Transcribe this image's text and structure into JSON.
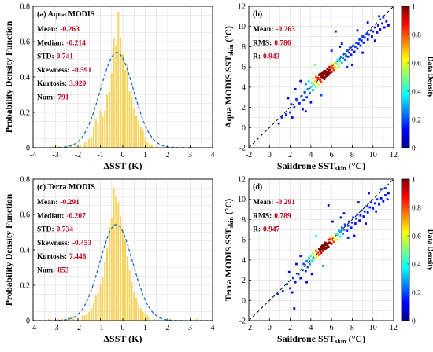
{
  "chart_data": [
    {
      "id": "a",
      "type": "bar",
      "panel_label": "(a) Aqua MODIS",
      "xlabel": "ΔSST (K)",
      "ylabel": "Probability Density Function",
      "xlim": [
        -4,
        4
      ],
      "ylim": [
        0,
        0.8
      ],
      "xticks": [
        "-4",
        "-3",
        "-2",
        "-1",
        "0",
        "1",
        "2",
        "3",
        "4"
      ],
      "yticks": [
        "0",
        "0.2",
        "0.4",
        "0.6",
        "0.8"
      ],
      "grid": true,
      "bin_width": 0.1,
      "bins_x": [
        -3.1,
        -2.9,
        -2.5,
        -2.3,
        -2.1,
        -1.9,
        -1.7,
        -1.6,
        -1.5,
        -1.4,
        -1.3,
        -1.2,
        -1.1,
        -1.0,
        -0.9,
        -0.8,
        -0.7,
        -0.6,
        -0.5,
        -0.4,
        -0.3,
        -0.2,
        -0.1,
        0.0,
        0.1,
        0.2,
        0.3,
        0.4,
        0.5,
        0.6,
        0.7,
        0.8,
        0.9,
        1.0,
        1.1,
        1.2,
        1.3,
        1.5,
        2.0,
        3.0
      ],
      "values": [
        0.01,
        0.01,
        0.01,
        0.02,
        0.01,
        0.02,
        0.03,
        0.03,
        0.05,
        0.06,
        0.12,
        0.16,
        0.14,
        0.21,
        0.18,
        0.21,
        0.3,
        0.32,
        0.42,
        0.62,
        0.58,
        0.77,
        0.62,
        0.53,
        0.44,
        0.47,
        0.32,
        0.29,
        0.22,
        0.18,
        0.15,
        0.12,
        0.1,
        0.06,
        0.03,
        0.02,
        0.02,
        0.01,
        0.01,
        0.01
      ],
      "fit": {
        "type": "normal",
        "mean": -0.263,
        "std": 0.741
      },
      "stats": [
        {
          "label": "Mean:",
          "value": "-0.263"
        },
        {
          "label": "Median:",
          "value": "-0.214"
        },
        {
          "label": "STD:",
          "value": "0.741"
        },
        {
          "label": "Skewness:",
          "value": "-0.591"
        },
        {
          "label": "Kurtosis:",
          "value": "3.920"
        },
        {
          "label": "Num:",
          "value": "791"
        }
      ],
      "colors": {
        "bars": "#f7d35e",
        "fit": "#1f6fb5",
        "values": "#c0001a"
      }
    },
    {
      "id": "b",
      "type": "scatter",
      "panel_label": "(b)",
      "xlabel": "Saildrone SST",
      "xlabel_sub": "skin",
      "xlabel_unit": " (°C)",
      "ylabel": "Aqua MODIS SST",
      "ylabel_sub": "skin",
      "ylabel_unit": " (°C)",
      "xlim": [
        -2,
        12
      ],
      "ylim": [
        -2,
        12
      ],
      "xticks": [
        "-2",
        "0",
        "2",
        "4",
        "6",
        "8",
        "10",
        "12"
      ],
      "yticks": [
        "-2",
        "0",
        "2",
        "4",
        "6",
        "8",
        "10",
        "12"
      ],
      "grid": true,
      "identity_line": true,
      "stats": [
        {
          "label": "Mean:",
          "value": "-0.263"
        },
        {
          "label": "RMS:",
          "value": "0.786"
        },
        {
          "label": "R:",
          "value": "0.943"
        }
      ],
      "colorbar": {
        "label": "Data Density",
        "range": [
          0,
          1
        ],
        "ticks": [
          "0",
          "0.2",
          "0.4",
          "0.6",
          "0.8",
          "1"
        ]
      },
      "points": [
        [
          0.9,
          0.4
        ],
        [
          1.2,
          1.0
        ],
        [
          1.6,
          1.3
        ],
        [
          2.0,
          1.5
        ],
        [
          2.1,
          2.3
        ],
        [
          2.4,
          2.0
        ],
        [
          2.6,
          2.8
        ],
        [
          2.9,
          2.4
        ],
        [
          3.1,
          3.1
        ],
        [
          3.2,
          1.8
        ],
        [
          3.3,
          2.7
        ],
        [
          3.4,
          3.5
        ],
        [
          3.5,
          4.3
        ],
        [
          3.6,
          3.0
        ],
        [
          3.7,
          3.8
        ],
        [
          3.8,
          4.6
        ],
        [
          3.9,
          3.4
        ],
        [
          4.0,
          4.0
        ],
        [
          4.1,
          4.4
        ],
        [
          4.2,
          3.7
        ],
        [
          4.2,
          4.9
        ],
        [
          4.3,
          4.2
        ],
        [
          4.4,
          4.6
        ],
        [
          4.5,
          4.0
        ],
        [
          4.5,
          5.0
        ],
        [
          4.6,
          4.4
        ],
        [
          4.7,
          4.8
        ],
        [
          4.8,
          4.2
        ],
        [
          4.8,
          5.2
        ],
        [
          4.9,
          4.7
        ],
        [
          5.0,
          5.0
        ],
        [
          5.0,
          4.5
        ],
        [
          5.1,
          5.4
        ],
        [
          5.2,
          4.9
        ],
        [
          5.2,
          5.2
        ],
        [
          5.3,
          5.6
        ],
        [
          5.3,
          4.8
        ],
        [
          5.4,
          5.3
        ],
        [
          5.4,
          5.0
        ],
        [
          5.5,
          5.5
        ],
        [
          5.5,
          5.1
        ],
        [
          5.6,
          5.4
        ],
        [
          5.6,
          5.8
        ],
        [
          5.7,
          5.2
        ],
        [
          5.7,
          5.6
        ],
        [
          5.8,
          6.0
        ],
        [
          5.8,
          5.4
        ],
        [
          5.9,
          5.7
        ],
        [
          6.0,
          6.1
        ],
        [
          6.0,
          5.5
        ],
        [
          6.1,
          5.9
        ],
        [
          6.2,
          6.3
        ],
        [
          6.2,
          5.7
        ],
        [
          6.3,
          6.0
        ],
        [
          6.4,
          6.5
        ],
        [
          6.5,
          5.9
        ],
        [
          6.5,
          6.3
        ],
        [
          6.6,
          6.7
        ],
        [
          6.7,
          6.1
        ],
        [
          6.8,
          6.6
        ],
        [
          6.9,
          7.0
        ],
        [
          7.0,
          6.4
        ],
        [
          7.1,
          6.9
        ],
        [
          7.2,
          7.3
        ],
        [
          7.3,
          6.7
        ],
        [
          7.4,
          7.1
        ],
        [
          7.5,
          7.6
        ],
        [
          7.6,
          7.0
        ],
        [
          7.7,
          7.4
        ],
        [
          7.8,
          7.9
        ],
        [
          7.9,
          7.2
        ],
        [
          8.0,
          7.7
        ],
        [
          8.1,
          8.1
        ],
        [
          8.2,
          7.5
        ],
        [
          8.3,
          8.0
        ],
        [
          8.4,
          8.4
        ],
        [
          8.5,
          7.8
        ],
        [
          8.6,
          8.3
        ],
        [
          8.7,
          8.7
        ],
        [
          8.8,
          8.1
        ],
        [
          8.9,
          8.6
        ],
        [
          9.0,
          9.0
        ],
        [
          9.1,
          8.4
        ],
        [
          9.2,
          8.9
        ],
        [
          9.4,
          9.3
        ],
        [
          9.5,
          8.7
        ],
        [
          9.6,
          9.2
        ],
        [
          9.8,
          9.6
        ],
        [
          9.9,
          9.0
        ],
        [
          10.0,
          9.5
        ],
        [
          10.2,
          9.9
        ],
        [
          10.4,
          9.4
        ],
        [
          10.5,
          10.1
        ],
        [
          10.7,
          9.7
        ],
        [
          10.9,
          10.3
        ],
        [
          11.1,
          9.9
        ],
        [
          11.3,
          10.5
        ],
        [
          11.5,
          10.1
        ],
        [
          4.9,
          5.3
        ],
        [
          5.1,
          5.0
        ],
        [
          5.3,
          5.4
        ],
        [
          5.5,
          5.3
        ],
        [
          5.2,
          5.5
        ],
        [
          5.4,
          5.6
        ],
        [
          5.0,
          5.2
        ],
        [
          5.6,
          5.5
        ],
        [
          4.7,
          4.9
        ],
        [
          5.8,
          5.7
        ],
        [
          3.0,
          4.6
        ],
        [
          2.5,
          3.8
        ],
        [
          6.0,
          7.6
        ],
        [
          7.0,
          8.3
        ],
        [
          8.0,
          6.2
        ],
        [
          9.0,
          7.4
        ],
        [
          4.0,
          2.5
        ],
        [
          5.0,
          3.2
        ],
        [
          6.4,
          9.5
        ],
        [
          10.6,
          11.0
        ],
        [
          1.8,
          2.9
        ],
        [
          7.5,
          6.0
        ],
        [
          8.5,
          9.6
        ],
        [
          3.5,
          1.6
        ],
        [
          9.5,
          10.4
        ],
        [
          10.2,
          8.6
        ],
        [
          11.0,
          10.9
        ],
        [
          2.2,
          1.0
        ],
        [
          6.8,
          8.0
        ],
        [
          4.4,
          6.2
        ]
      ]
    },
    {
      "id": "c",
      "type": "bar",
      "panel_label": "(c) Terra MODIS",
      "xlabel": "ΔSST (K)",
      "ylabel": "Probability Density Function",
      "xlim": [
        -4,
        4
      ],
      "ylim": [
        0,
        0.8
      ],
      "xticks": [
        "-4",
        "-3",
        "-2",
        "-1",
        "0",
        "1",
        "2",
        "3",
        "4"
      ],
      "yticks": [
        "0",
        "0.2",
        "0.4",
        "0.6",
        "0.8"
      ],
      "grid": true,
      "bin_width": 0.1,
      "bins_x": [
        -3.3,
        -2.9,
        -2.7,
        -2.4,
        -2.2,
        -2.0,
        -1.8,
        -1.7,
        -1.6,
        -1.5,
        -1.4,
        -1.3,
        -1.2,
        -1.1,
        -1.0,
        -0.9,
        -0.8,
        -0.7,
        -0.6,
        -0.5,
        -0.4,
        -0.3,
        -0.2,
        -0.1,
        0.0,
        0.1,
        0.2,
        0.3,
        0.4,
        0.5,
        0.6,
        0.7,
        0.8,
        0.9,
        1.0,
        1.1,
        1.2,
        1.4,
        2.1,
        3.3
      ],
      "values": [
        0.01,
        0.01,
        0.01,
        0.02,
        0.02,
        0.01,
        0.03,
        0.03,
        0.04,
        0.05,
        0.07,
        0.1,
        0.14,
        0.16,
        0.21,
        0.25,
        0.33,
        0.41,
        0.53,
        0.58,
        0.75,
        0.7,
        0.67,
        0.59,
        0.52,
        0.45,
        0.36,
        0.29,
        0.22,
        0.16,
        0.13,
        0.09,
        0.07,
        0.05,
        0.04,
        0.03,
        0.02,
        0.01,
        0.01,
        0.01
      ],
      "fit": {
        "type": "normal",
        "mean": -0.291,
        "std": 0.734
      },
      "stats": [
        {
          "label": "Mean:",
          "value": "-0.291"
        },
        {
          "label": "Median:",
          "value": "-0.207"
        },
        {
          "label": "STD:",
          "value": "0.734"
        },
        {
          "label": "Skewness:",
          "value": "-0.453"
        },
        {
          "label": "Kurtosis:",
          "value": "7.448"
        },
        {
          "label": "Num:",
          "value": "853"
        }
      ],
      "colors": {
        "bars": "#f7d35e",
        "fit": "#1f6fb5",
        "values": "#c0001a"
      }
    },
    {
      "id": "d",
      "type": "scatter",
      "panel_label": "(d)",
      "xlabel": "Saildrone SST",
      "xlabel_sub": "skin",
      "xlabel_unit": " (°C)",
      "ylabel": "Terra MODIS SST",
      "ylabel_sub": "skin",
      "ylabel_unit": " (°C)",
      "xlim": [
        -2,
        12
      ],
      "ylim": [
        -2,
        12
      ],
      "xticks": [
        "-2",
        "0",
        "2",
        "4",
        "6",
        "8",
        "10",
        "12"
      ],
      "yticks": [
        "-2",
        "0",
        "2",
        "4",
        "6",
        "8",
        "10",
        "12"
      ],
      "grid": true,
      "identity_line": true,
      "stats": [
        {
          "label": "Mean:",
          "value": "-0.291"
        },
        {
          "label": "RMS:",
          "value": "0.789"
        },
        {
          "label": "R:",
          "value": "0.947"
        }
      ],
      "colorbar": {
        "label": "Data Density",
        "range": [
          0,
          1
        ],
        "ticks": [
          "0",
          "0.2",
          "0.4",
          "0.6",
          "0.8",
          "1"
        ]
      },
      "points": [
        [
          0.8,
          0.6
        ],
        [
          1.3,
          0.9
        ],
        [
          1.7,
          1.6
        ],
        [
          2.0,
          1.2
        ],
        [
          2.3,
          2.2
        ],
        [
          2.5,
          1.8
        ],
        [
          2.8,
          2.6
        ],
        [
          3.0,
          2.2
        ],
        [
          3.2,
          3.0
        ],
        [
          3.3,
          3.6
        ],
        [
          3.5,
          2.9
        ],
        [
          3.6,
          3.9
        ],
        [
          3.7,
          3.3
        ],
        [
          3.8,
          4.2
        ],
        [
          3.9,
          3.6
        ],
        [
          4.0,
          4.4
        ],
        [
          4.1,
          3.9
        ],
        [
          4.2,
          4.7
        ],
        [
          4.3,
          4.1
        ],
        [
          4.4,
          4.5
        ],
        [
          4.5,
          4.9
        ],
        [
          4.6,
          4.3
        ],
        [
          4.7,
          4.7
        ],
        [
          4.8,
          5.1
        ],
        [
          4.8,
          4.5
        ],
        [
          4.9,
          4.9
        ],
        [
          5.0,
          5.3
        ],
        [
          5.0,
          4.7
        ],
        [
          5.1,
          5.1
        ],
        [
          5.2,
          5.5
        ],
        [
          5.2,
          4.9
        ],
        [
          5.3,
          5.3
        ],
        [
          5.4,
          5.7
        ],
        [
          5.4,
          5.1
        ],
        [
          5.5,
          5.5
        ],
        [
          5.5,
          5.2
        ],
        [
          5.6,
          5.6
        ],
        [
          5.7,
          6.0
        ],
        [
          5.7,
          5.3
        ],
        [
          5.8,
          5.7
        ],
        [
          5.9,
          6.1
        ],
        [
          6.0,
          5.6
        ],
        [
          6.0,
          6.0
        ],
        [
          6.1,
          6.3
        ],
        [
          6.2,
          5.8
        ],
        [
          6.3,
          6.2
        ],
        [
          6.4,
          6.6
        ],
        [
          6.5,
          6.0
        ],
        [
          6.6,
          6.5
        ],
        [
          6.7,
          6.9
        ],
        [
          6.8,
          6.3
        ],
        [
          6.9,
          6.8
        ],
        [
          7.0,
          7.2
        ],
        [
          7.1,
          6.6
        ],
        [
          7.2,
          7.0
        ],
        [
          7.3,
          7.5
        ],
        [
          7.5,
          6.9
        ],
        [
          7.6,
          7.4
        ],
        [
          7.7,
          7.8
        ],
        [
          7.9,
          7.2
        ],
        [
          8.0,
          7.7
        ],
        [
          8.1,
          8.2
        ],
        [
          8.3,
          7.6
        ],
        [
          8.4,
          8.1
        ],
        [
          8.5,
          8.5
        ],
        [
          8.7,
          7.9
        ],
        [
          8.8,
          8.4
        ],
        [
          8.9,
          8.9
        ],
        [
          9.1,
          8.3
        ],
        [
          9.2,
          8.8
        ],
        [
          9.4,
          9.3
        ],
        [
          9.5,
          8.7
        ],
        [
          9.7,
          9.2
        ],
        [
          9.8,
          9.7
        ],
        [
          10.0,
          9.1
        ],
        [
          10.2,
          9.6
        ],
        [
          10.4,
          10.0
        ],
        [
          10.6,
          9.5
        ],
        [
          10.8,
          10.1
        ],
        [
          11.0,
          9.8
        ],
        [
          11.2,
          10.4
        ],
        [
          11.4,
          10.0
        ],
        [
          11.5,
          10.6
        ],
        [
          5.1,
          5.4
        ],
        [
          5.3,
          5.2
        ],
        [
          5.5,
          5.6
        ],
        [
          5.2,
          5.3
        ],
        [
          5.4,
          5.5
        ],
        [
          5.6,
          5.4
        ],
        [
          5.0,
          5.1
        ],
        [
          4.9,
          5.0
        ],
        [
          5.7,
          5.7
        ],
        [
          3.0,
          4.4
        ],
        [
          2.6,
          3.6
        ],
        [
          6.1,
          7.8
        ],
        [
          7.2,
          8.6
        ],
        [
          8.2,
          6.4
        ],
        [
          9.3,
          7.6
        ],
        [
          4.1,
          2.6
        ],
        [
          5.2,
          3.4
        ],
        [
          5.7,
          9.4
        ],
        [
          10.8,
          11.0
        ],
        [
          1.9,
          2.8
        ],
        [
          7.6,
          6.2
        ],
        [
          8.6,
          9.7
        ],
        [
          3.6,
          1.8
        ],
        [
          9.6,
          10.6
        ],
        [
          10.3,
          8.8
        ],
        [
          11.2,
          11.1
        ],
        [
          2.2,
          0.8
        ],
        [
          6.9,
          8.2
        ],
        [
          4.5,
          6.4
        ],
        [
          2.4,
          -0.8
        ]
      ]
    }
  ]
}
